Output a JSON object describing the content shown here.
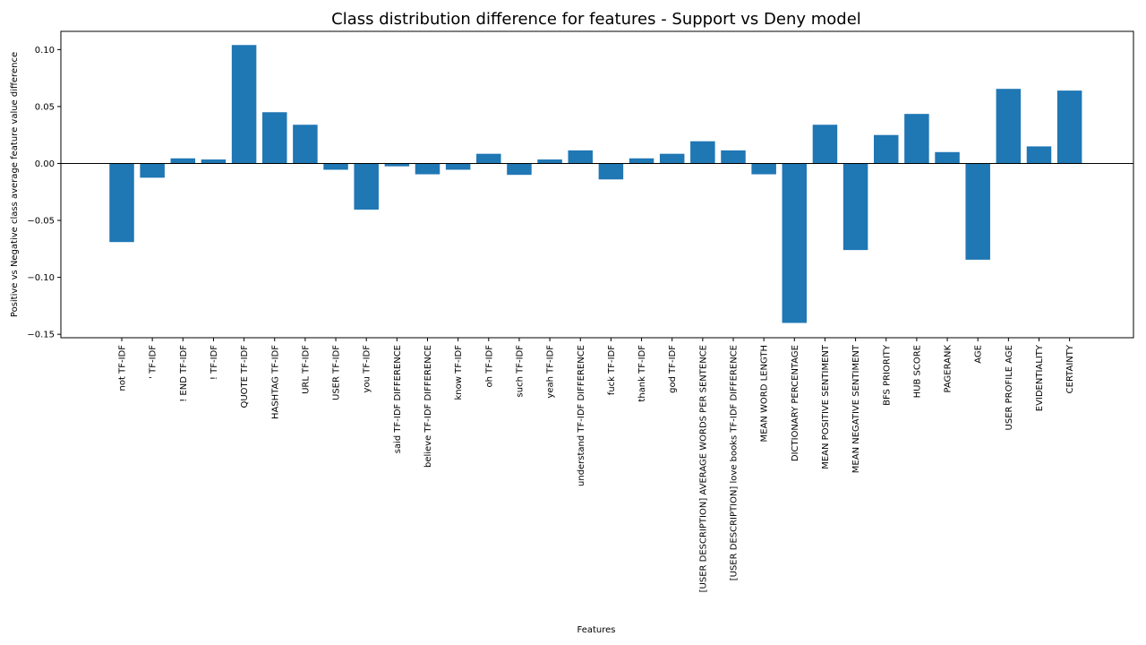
{
  "chart_data": {
    "type": "bar",
    "title": "Class distribution difference for features - Support vs Deny model",
    "xlabel": "Features",
    "ylabel": "Positive vs Negative class average feature value difference",
    "ylim": [
      -0.153,
      0.116
    ],
    "yticks": [
      0.1,
      0.05,
      0.0,
      -0.05,
      -0.1,
      -0.15
    ],
    "ytick_labels": [
      "0.10",
      "0.05",
      "0.00",
      "−0.05",
      "−0.10",
      "−0.15"
    ],
    "zero_line": true,
    "grid": false,
    "color": "#1f77b4",
    "categories": [
      "not TF-IDF",
      "' TF-IDF",
      "! END TF-IDF",
      "! TF-IDF",
      "QUOTE TF-IDF",
      "HASHTAG TF-IDF",
      "URL TF-IDF",
      "USER TF-IDF",
      "you TF-IDF",
      "said TF-IDF DIFFERENCE",
      "believe TF-IDF DIFFERENCE",
      "know TF-IDF",
      "oh TF-IDF",
      "such TF-IDF",
      "yeah TF-IDF",
      "understand TF-IDF DIFFERENCE",
      "fuck TF-IDF",
      "thank TF-IDF",
      "god TF-IDF",
      "[USER DESCRIPTION] AVERAGE WORDS PER SENTENCE",
      "[USER DESCRIPTION] love books TF-IDF DIFFERENCE",
      "MEAN WORD LENGTH",
      "DICTIONARY PERCENTAGE",
      "MEAN POSITIVE SENTIMENT",
      "MEAN NEGATIVE SENTIMENT",
      "BFS PRIORITY",
      "HUB SCORE",
      "PAGERANK",
      "AGE",
      "USER PROFILE AGE",
      "EVIDENTIALITY",
      "CERTAINTY"
    ],
    "values": [
      -0.069,
      -0.0125,
      0.0045,
      0.0035,
      0.104,
      0.045,
      0.034,
      -0.0055,
      -0.0405,
      -0.0025,
      -0.0095,
      -0.0055,
      0.0085,
      -0.01,
      0.0035,
      0.0115,
      -0.014,
      0.0045,
      0.0085,
      0.0195,
      0.0115,
      -0.0095,
      -0.14,
      0.034,
      -0.076,
      0.025,
      0.0435,
      0.01,
      -0.0845,
      0.0655,
      0.015,
      0.064
    ]
  }
}
